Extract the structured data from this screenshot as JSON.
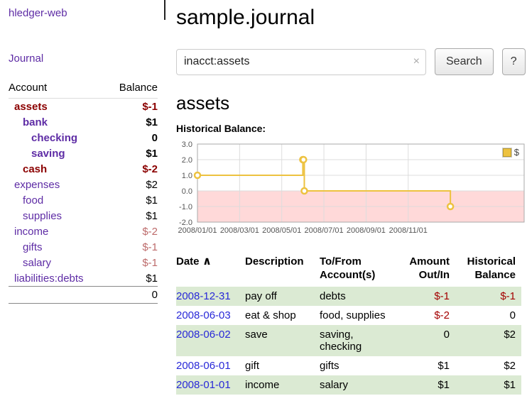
{
  "app": {
    "title": "hledger-web",
    "journal_link": "Journal"
  },
  "colors": {
    "purple": "#5e2ca5",
    "neg-strong": "#8b0000",
    "neg": "#a40000",
    "neg-faded": "#bd6b6b",
    "row-green": "#dbead3",
    "link-blue": "#2828d8",
    "chart-line": "#edc240",
    "chart-neg-bg": "#ffd9d9"
  },
  "sidebar": {
    "accounts_header": {
      "account": "Account",
      "balance": "Balance"
    },
    "accounts": [
      {
        "name": "assets",
        "balance": "$-1",
        "depth": 0,
        "bold": true,
        "name_neg": true,
        "bal_neg": "strong"
      },
      {
        "name": "bank",
        "balance": "$1",
        "depth": 1,
        "bold": true,
        "name_neg": false,
        "bal_neg": null
      },
      {
        "name": "checking",
        "balance": "0",
        "depth": 2,
        "bold": true,
        "name_neg": false,
        "bal_neg": null
      },
      {
        "name": "saving",
        "balance": "$1",
        "depth": 2,
        "bold": true,
        "name_neg": false,
        "bal_neg": null
      },
      {
        "name": "cash",
        "balance": "$-2",
        "depth": 1,
        "bold": true,
        "name_neg": true,
        "bal_neg": "strong"
      },
      {
        "name": "expenses",
        "balance": "$2",
        "depth": 0,
        "bold": false,
        "name_neg": false,
        "bal_neg": null
      },
      {
        "name": "food",
        "balance": "$1",
        "depth": 1,
        "bold": false,
        "name_neg": false,
        "bal_neg": null
      },
      {
        "name": "supplies",
        "balance": "$1",
        "depth": 1,
        "bold": false,
        "name_neg": false,
        "bal_neg": null
      },
      {
        "name": "income",
        "balance": "$-2",
        "depth": 0,
        "bold": false,
        "name_neg": false,
        "bal_neg": "faded"
      },
      {
        "name": "gifts",
        "balance": "$-1",
        "depth": 1,
        "bold": false,
        "name_neg": false,
        "bal_neg": "faded"
      },
      {
        "name": "salary",
        "balance": "$-1",
        "depth": 1,
        "bold": false,
        "name_neg": false,
        "bal_neg": "faded"
      },
      {
        "name": "liabilities:debts",
        "balance": "$1",
        "depth": 0,
        "bold": false,
        "name_neg": false,
        "bal_neg": null
      }
    ],
    "total": "0"
  },
  "header": {
    "title": "sample.journal"
  },
  "search": {
    "value": "inacct:assets",
    "clear_icon": "×",
    "button": "Search",
    "help_button": "?"
  },
  "main": {
    "heading": "assets",
    "chart_label": "Historical Balance:"
  },
  "chart_data": {
    "type": "line",
    "title": "Historical Balance of assets",
    "legend": "$",
    "series": [
      {
        "name": "$",
        "color": "#edc240",
        "steps": true,
        "points": [
          {
            "date": "2008-01-01",
            "x": 0,
            "y": 1
          },
          {
            "date": "2008-06-01",
            "x": 5.0,
            "y": 2
          },
          {
            "date": "2008-06-02",
            "x": 5.03,
            "y": 2
          },
          {
            "date": "2008-06-03",
            "x": 5.07,
            "y": 0
          },
          {
            "date": "2008-12-31",
            "x": 12.0,
            "y": -1
          }
        ]
      }
    ],
    "x_ticks": [
      {
        "x": 0,
        "label": "2008/01/01"
      },
      {
        "x": 2,
        "label": "2008/03/01"
      },
      {
        "x": 4,
        "label": "2008/05/01"
      },
      {
        "x": 6,
        "label": "2008/07/01"
      },
      {
        "x": 8,
        "label": "2008/09/01"
      },
      {
        "x": 10,
        "label": "2008/11/01"
      }
    ],
    "y_ticks": [
      3,
      2,
      1,
      0,
      -1,
      -2
    ],
    "xlim": [
      0,
      15.5
    ],
    "ylim": [
      -2,
      3
    ],
    "grid": true,
    "legend_position": "top-right"
  },
  "transactions": {
    "columns": [
      {
        "line1": "Date",
        "line2": "",
        "sort": "∧"
      },
      {
        "line1": "Description",
        "line2": ""
      },
      {
        "line1": "To/From",
        "line2": "Account(s)"
      },
      {
        "line1": "Amount",
        "line2": "Out/In"
      },
      {
        "line1": "Historical",
        "line2": "Balance"
      }
    ],
    "rows": [
      {
        "date": "2008-12-31",
        "description": "pay off",
        "accounts": "debts",
        "amount": "$-1",
        "amount_neg": true,
        "balance": "$-1",
        "balance_neg": true
      },
      {
        "date": "2008-06-03",
        "description": "eat & shop",
        "accounts": "food, supplies",
        "amount": "$-2",
        "amount_neg": true,
        "balance": "0",
        "balance_neg": false
      },
      {
        "date": "2008-06-02",
        "description": "save",
        "accounts": "saving, checking",
        "amount": "0",
        "amount_neg": false,
        "balance": "$2",
        "balance_neg": false
      },
      {
        "date": "2008-06-01",
        "description": "gift",
        "accounts": "gifts",
        "amount": "$1",
        "amount_neg": false,
        "balance": "$2",
        "balance_neg": false
      },
      {
        "date": "2008-01-01",
        "description": "income",
        "accounts": "salary",
        "amount": "$1",
        "amount_neg": false,
        "balance": "$1",
        "balance_neg": false
      }
    ]
  }
}
